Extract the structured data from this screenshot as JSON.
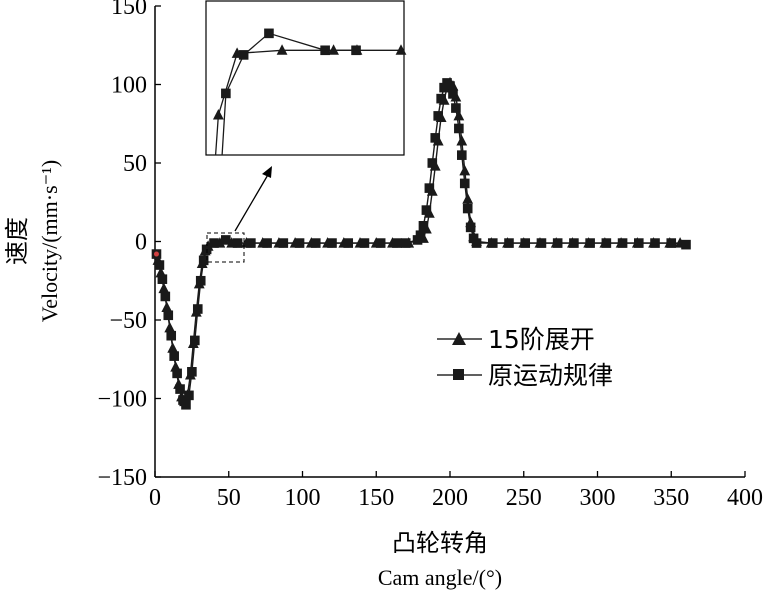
{
  "chart_data": {
    "type": "line",
    "x_ticks": [
      "0",
      "50",
      "100",
      "150",
      "200",
      "250",
      "300",
      "350",
      "400"
    ],
    "y_ticks": [
      "-150",
      "-100",
      "-50",
      "0",
      "50",
      "100",
      "150"
    ],
    "xlim": [
      0,
      400
    ],
    "ylim": [
      -150,
      150
    ],
    "xlabel_cn": "凸轮转角",
    "xlabel_en": "Cam angle/(°)",
    "ylabel_cn": "速度",
    "ylabel_en": "Velocity/(mm·s⁻¹)",
    "legend_position": "center-right",
    "grid": false,
    "colors": {
      "series": "#1a1a1a",
      "axis": "#000000"
    },
    "series": [
      {
        "name": "15阶展开",
        "marker": "triangle",
        "points": [
          [
            2,
            -12
          ],
          [
            4,
            -20
          ],
          [
            6,
            -30
          ],
          [
            8,
            -42
          ],
          [
            10,
            -55
          ],
          [
            12,
            -68
          ],
          [
            14,
            -80
          ],
          [
            16,
            -91
          ],
          [
            18,
            -99
          ],
          [
            20,
            -102
          ],
          [
            22,
            -98
          ],
          [
            24,
            -85
          ],
          [
            26,
            -65
          ],
          [
            28,
            -45
          ],
          [
            30,
            -27
          ],
          [
            32,
            -14
          ],
          [
            34,
            -6
          ],
          [
            36,
            -3
          ],
          [
            44,
            -1
          ],
          [
            52,
            -1
          ],
          [
            62,
            -1
          ],
          [
            73,
            -1
          ],
          [
            84,
            -1
          ],
          [
            95,
            -1
          ],
          [
            106,
            -1
          ],
          [
            117,
            -1
          ],
          [
            128,
            -1
          ],
          [
            139,
            -1
          ],
          [
            150,
            -1
          ],
          [
            161,
            -1
          ],
          [
            172,
            -1
          ],
          [
            182,
            2
          ],
          [
            184,
            8
          ],
          [
            186,
            18
          ],
          [
            188,
            32
          ],
          [
            190,
            48
          ],
          [
            192,
            64
          ],
          [
            194,
            79
          ],
          [
            196,
            90
          ],
          [
            198,
            98
          ],
          [
            200,
            101
          ],
          [
            202,
            99
          ],
          [
            204,
            92
          ],
          [
            206,
            80
          ],
          [
            208,
            64
          ],
          [
            210,
            45
          ],
          [
            212,
            27
          ],
          [
            214,
            12
          ],
          [
            216,
            3
          ],
          [
            218,
            0
          ],
          [
            228,
            -1
          ],
          [
            239,
            -1
          ],
          [
            250,
            -1
          ],
          [
            261,
            -1
          ],
          [
            272,
            -1
          ],
          [
            283,
            -1
          ],
          [
            294,
            -1
          ],
          [
            305,
            -1
          ],
          [
            316,
            -1
          ],
          [
            327,
            -1
          ],
          [
            338,
            -1
          ],
          [
            349,
            -1
          ],
          [
            356,
            -1
          ]
        ]
      },
      {
        "name": "原运动规律",
        "marker": "square",
        "points": [
          [
            1,
            -8
          ],
          [
            3,
            -15
          ],
          [
            5,
            -24
          ],
          [
            7,
            -35
          ],
          [
            9,
            -47
          ],
          [
            11,
            -60
          ],
          [
            13,
            -73
          ],
          [
            15,
            -84
          ],
          [
            17,
            -94
          ],
          [
            19,
            -101
          ],
          [
            21,
            -104
          ],
          [
            23,
            -98
          ],
          [
            25,
            -83
          ],
          [
            27,
            -63
          ],
          [
            29,
            -43
          ],
          [
            31,
            -25
          ],
          [
            33,
            -12
          ],
          [
            35,
            -5
          ],
          [
            40,
            -1
          ],
          [
            48,
            1
          ],
          [
            56,
            -1
          ],
          [
            65,
            -1
          ],
          [
            76,
            -1
          ],
          [
            87,
            -1
          ],
          [
            98,
            -1
          ],
          [
            109,
            -1
          ],
          [
            120,
            -1
          ],
          [
            131,
            -1
          ],
          [
            142,
            -1
          ],
          [
            153,
            -1
          ],
          [
            164,
            -1
          ],
          [
            170,
            -1
          ],
          [
            178,
            1
          ],
          [
            180,
            4
          ],
          [
            182,
            10
          ],
          [
            184,
            20
          ],
          [
            186,
            34
          ],
          [
            188,
            50
          ],
          [
            190,
            66
          ],
          [
            192,
            80
          ],
          [
            194,
            91
          ],
          [
            196,
            98
          ],
          [
            198,
            101
          ],
          [
            200,
            99
          ],
          [
            202,
            94
          ],
          [
            204,
            85
          ],
          [
            206,
            72
          ],
          [
            208,
            55
          ],
          [
            210,
            37
          ],
          [
            212,
            21
          ],
          [
            214,
            9
          ],
          [
            216,
            2
          ],
          [
            218,
            -1
          ],
          [
            229,
            -1
          ],
          [
            240,
            -1
          ],
          [
            251,
            -1
          ],
          [
            262,
            -1
          ],
          [
            273,
            -1
          ],
          [
            284,
            -1
          ],
          [
            295,
            -1
          ],
          [
            306,
            -1
          ],
          [
            317,
            -1
          ],
          [
            328,
            -1
          ],
          [
            339,
            -1
          ],
          [
            350,
            -1
          ],
          [
            360,
            -2
          ]
        ]
      }
    ],
    "inset": {
      "source_range_x": [
        35,
        60
      ],
      "source_range_y": [
        -13,
        6
      ],
      "triangle_points": [
        [
          0.1,
          0.74
        ],
        [
          0.3,
          0.34
        ],
        [
          0.78,
          0.32
        ],
        [
          1.33,
          0.32
        ],
        [
          1.58,
          0.32
        ],
        [
          2.05,
          0.32
        ]
      ],
      "square_points": [
        [
          0.18,
          0.6
        ],
        [
          0.37,
          0.35
        ],
        [
          0.64,
          0.21
        ],
        [
          1.24,
          0.32
        ],
        [
          1.57,
          0.32
        ]
      ]
    }
  }
}
